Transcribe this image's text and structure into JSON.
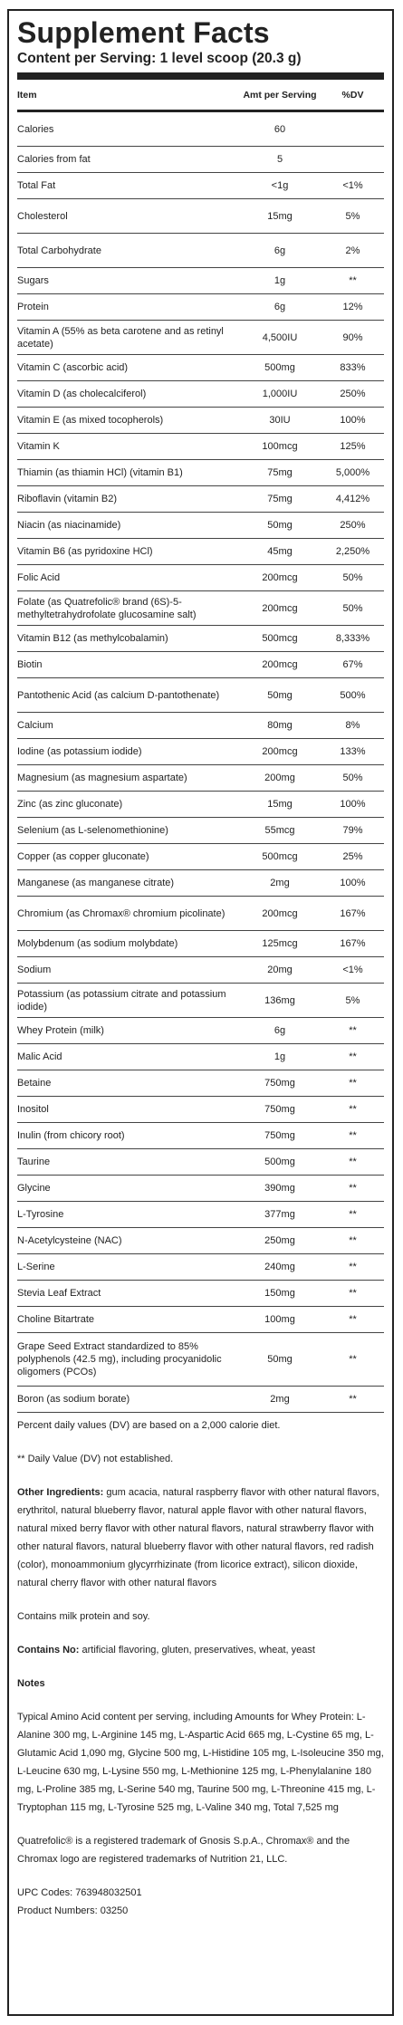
{
  "title": "Supplement Facts",
  "serving": "Content per Serving: 1 level scoop (20.3 g)",
  "headers": {
    "item": "Item",
    "amount": "Amt per Serving",
    "dv": "%DV"
  },
  "rows": [
    {
      "name": "Calories",
      "amount": "60",
      "dv": ""
    },
    {
      "name": "Calories from fat",
      "amount": "5",
      "dv": ""
    },
    {
      "name": "Total Fat",
      "amount": "<1g",
      "dv": "<1%"
    },
    {
      "name": "Cholesterol",
      "amount": "15mg",
      "dv": "5%"
    },
    {
      "name": "Total Carbohydrate",
      "amount": "6g",
      "dv": "2%"
    },
    {
      "name": "Sugars",
      "amount": "1g",
      "dv": "**"
    },
    {
      "name": "Protein",
      "amount": "6g",
      "dv": "12%"
    },
    {
      "name": "Vitamin A (55% as beta carotene and as retinyl acetate)",
      "amount": "4,500IU",
      "dv": "90%"
    },
    {
      "name": "Vitamin C (ascorbic acid)",
      "amount": "500mg",
      "dv": "833%"
    },
    {
      "name": "Vitamin D (as cholecalciferol)",
      "amount": "1,000IU",
      "dv": "250%"
    },
    {
      "name": "Vitamin E (as mixed tocopherols)",
      "amount": "30IU",
      "dv": "100%"
    },
    {
      "name": "Vitamin K",
      "amount": "100mcg",
      "dv": "125%"
    },
    {
      "name": "Thiamin (as thiamin HCl) (vitamin B1)",
      "amount": "75mg",
      "dv": "5,000%"
    },
    {
      "name": "Riboflavin (vitamin B2)",
      "amount": "75mg",
      "dv": "4,412%"
    },
    {
      "name": "Niacin (as niacinamide)",
      "amount": "50mg",
      "dv": "250%"
    },
    {
      "name": "Vitamin B6 (as pyridoxine HCl)",
      "amount": "45mg",
      "dv": "2,250%"
    },
    {
      "name": "Folic Acid",
      "amount": "200mcg",
      "dv": "50%"
    },
    {
      "name": "Folate (as Quatrefolic® brand (6S)-5-methyltetrahydrofolate glucosamine salt)",
      "amount": "200mcg",
      "dv": "50%"
    },
    {
      "name": "Vitamin B12 (as methylcobalamin)",
      "amount": "500mcg",
      "dv": "8,333%"
    },
    {
      "name": "Biotin",
      "amount": "200mcg",
      "dv": "67%"
    },
    {
      "name": "Pantothenic Acid (as calcium D-pantothenate)",
      "amount": "50mg",
      "dv": "500%"
    },
    {
      "name": "Calcium",
      "amount": "80mg",
      "dv": "8%"
    },
    {
      "name": "Iodine (as potassium iodide)",
      "amount": "200mcg",
      "dv": "133%"
    },
    {
      "name": "Magnesium (as magnesium aspartate)",
      "amount": "200mg",
      "dv": "50%"
    },
    {
      "name": "Zinc (as zinc gluconate)",
      "amount": "15mg",
      "dv": "100%"
    },
    {
      "name": "Selenium (as L-selenomethionine)",
      "amount": "55mcg",
      "dv": "79%"
    },
    {
      "name": "Copper (as copper gluconate)",
      "amount": "500mcg",
      "dv": "25%"
    },
    {
      "name": "Manganese (as manganese citrate)",
      "amount": "2mg",
      "dv": "100%"
    },
    {
      "name": "Chromium (as Chromax® chromium picolinate)",
      "amount": "200mcg",
      "dv": "167%"
    },
    {
      "name": "Molybdenum (as sodium molybdate)",
      "amount": "125mcg",
      "dv": "167%"
    },
    {
      "name": "Sodium",
      "amount": "20mg",
      "dv": "<1%"
    },
    {
      "name": "Potassium (as potassium citrate and potassium iodide)",
      "amount": "136mg",
      "dv": "5%"
    },
    {
      "name": "Whey Protein (milk)",
      "amount": "6g",
      "dv": "**"
    },
    {
      "name": "Malic Acid",
      "amount": "1g",
      "dv": "**"
    },
    {
      "name": "Betaine",
      "amount": "750mg",
      "dv": "**"
    },
    {
      "name": "Inositol",
      "amount": "750mg",
      "dv": "**"
    },
    {
      "name": "Inulin (from chicory root)",
      "amount": "750mg",
      "dv": "**"
    },
    {
      "name": "Taurine",
      "amount": "500mg",
      "dv": "**"
    },
    {
      "name": "Glycine",
      "amount": "390mg",
      "dv": "**"
    },
    {
      "name": "L-Tyrosine",
      "amount": "377mg",
      "dv": "**"
    },
    {
      "name": "N-Acetylcysteine (NAC)",
      "amount": "250mg",
      "dv": "**"
    },
    {
      "name": "L-Serine",
      "amount": "240mg",
      "dv": "**"
    },
    {
      "name": "Stevia Leaf Extract",
      "amount": "150mg",
      "dv": "**"
    },
    {
      "name": "Choline Bitartrate",
      "amount": "100mg",
      "dv": "**"
    },
    {
      "name": "Grape Seed Extract standardized to 85% polyphenols (42.5 mg), including procyanidolic oligomers (PCOs)",
      "amount": "50mg",
      "dv": "**"
    },
    {
      "name": "Boron (as sodium borate)",
      "amount": "2mg",
      "dv": "**"
    }
  ],
  "notes": {
    "dv_note": "Percent daily values (DV) are based on a 2,000 calorie diet.",
    "dv_not_established": "** Daily Value (DV) not established.",
    "other_ingredients_label": "Other Ingredients:",
    "other_ingredients": " gum acacia, natural raspberry flavor with other natural flavors, erythritol, natural blueberry flavor, natural apple flavor with other natural flavors, natural mixed berry flavor with other natural flavors, natural strawberry flavor with other natural flavors, natural blueberry flavor with other natural flavors, red radish (color), monoammonium glycyrrhizinate (from licorice extract), silicon dioxide, natural cherry flavor with other natural flavors",
    "contains": "Contains milk protein and soy.",
    "contains_no_label": "Contains No:",
    "contains_no": " artificial flavoring, gluten, preservatives, wheat, yeast",
    "notes_heading": "Notes",
    "amino_acids": "Typical Amino Acid content per serving, including Amounts for Whey Protein: L-Alanine 300 mg, L-Arginine 145 mg, L-Aspartic Acid 665 mg, L-Cystine 65 mg, L-Glutamic Acid 1,090 mg, Glycine 500 mg, L-Histidine 105 mg, L-Isoleucine 350 mg, L-Leucine 630 mg, L-Lysine 550 mg, L-Methionine 125 mg, L-Phenylalanine 180 mg, L-Proline 385 mg, L-Serine 540 mg, Taurine 500 mg, L-Threonine 415 mg, L-Tryptophan 115 mg, L-Tyrosine 525 mg, L-Valine 340 mg, Total 7,525 mg",
    "trademark": "Quatrefolic® is a registered trademark of Gnosis S.p.A., Chromax® and the Chromax logo are registered trademarks of Nutrition 21, LLC.",
    "upc": "UPC Codes: 763948032501",
    "product_numbers": "Product Numbers: 03250"
  }
}
